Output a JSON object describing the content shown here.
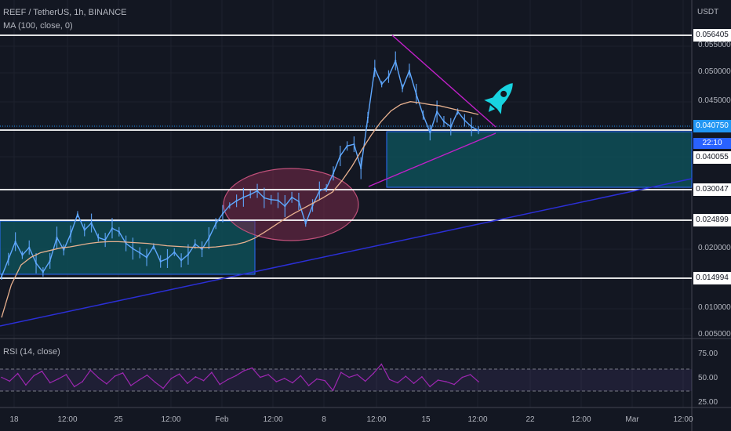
{
  "header": {
    "symbol_line": "REEF / TetherUS, 1h, BINANCE",
    "ma_line": "MA (100, close, 0)",
    "rsi_line": "RSI (14, close)",
    "currency": "USDT"
  },
  "colors": {
    "background": "#131722",
    "candles": "#5fa8ff",
    "ma": "#e8b18f",
    "trendline": "#2b2fd6",
    "triangle": "#c020c8",
    "ellipse_fill": "#7a2a4a",
    "box_fill": "#0e4f57",
    "rsi_line": "#9c27b0",
    "rocket": "#18d3e0"
  },
  "chart_data": {
    "type": "line",
    "title": "REEF / TetherUS, 1h, BINANCE",
    "x_ticks": [
      "18",
      "12:00",
      "25",
      "12:00",
      "Feb",
      "12:00",
      "8",
      "12:00",
      "15",
      "12:00",
      "22",
      "12:00",
      "Mar",
      "12:00"
    ],
    "y_ticks": [
      "0.055000",
      "0.050000",
      "0.045000",
      "0.040000",
      "0.020000",
      "0.010000",
      "0.005000"
    ],
    "ylim": [
      0.005,
      0.06
    ],
    "horizontal_levels": [
      0.056405,
      0.040055,
      0.030047,
      0.024899,
      0.014994
    ],
    "price_tags": [
      "0.056405",
      "0.040055",
      "0.030047",
      "0.024899",
      "0.014994"
    ],
    "current_price": "0.040750",
    "countdown": "22:10",
    "series": [
      {
        "name": "",
        "values": [
          0.0155,
          0.0185,
          0.0215,
          0.0192,
          0.0205,
          0.0178,
          0.0163,
          0.0182,
          0.0222,
          0.0201,
          0.0228,
          0.0262,
          0.0235,
          0.0247,
          0.0222,
          0.0218,
          0.0238,
          0.0232,
          0.0212,
          0.0203,
          0.0196,
          0.0188,
          0.0207,
          0.0181,
          0.0186,
          0.0197,
          0.0183,
          0.0193,
          0.0211,
          0.0202,
          0.0221,
          0.0246,
          0.0263,
          0.0277,
          0.0285,
          0.0291,
          0.0296,
          0.0302,
          0.029,
          0.0287,
          0.0286,
          0.0276,
          0.0291,
          0.0284,
          0.0246,
          0.0277,
          0.0302,
          0.0307,
          0.0332,
          0.0362,
          0.0379,
          0.0382,
          0.0341,
          0.0428,
          0.0512,
          0.0485,
          0.0498,
          0.0525,
          0.0478,
          0.0508,
          0.0468,
          0.0432,
          0.0402,
          0.0438,
          0.0421,
          0.0412,
          0.0438,
          0.0423,
          0.0412,
          0.0406
        ]
      },
      {
        "name": "MA (100, close, 0)",
        "values": [
          0.0085,
          0.0141,
          0.0175,
          0.0188,
          0.0196,
          0.02,
          0.0204,
          0.0206,
          0.0209,
          0.0212,
          0.0214,
          0.0215,
          0.0215,
          0.0214,
          0.0213,
          0.0212,
          0.021,
          0.0208,
          0.0207,
          0.0206,
          0.0205,
          0.0205,
          0.0206,
          0.0208,
          0.021,
          0.0214,
          0.0221,
          0.0231,
          0.0242,
          0.0253,
          0.0263,
          0.0272,
          0.0281,
          0.029,
          0.03,
          0.032,
          0.0344,
          0.0372,
          0.0398,
          0.0421,
          0.0439,
          0.045,
          0.0455,
          0.0453,
          0.045,
          0.0448,
          0.0444,
          0.044,
          0.0437,
          0.0433
        ]
      },
      {
        "name": "RSI (14, close)",
        "values": [
          55,
          48,
          62,
          41,
          58,
          66,
          45,
          52,
          60,
          38,
          47,
          68,
          54,
          43,
          57,
          63,
          40,
          50,
          59,
          46,
          35,
          53,
          61,
          44,
          56,
          49,
          64,
          42,
          51,
          58,
          67,
          72,
          55,
          60,
          47,
          53,
          45,
          58,
          40,
          52,
          49,
          31,
          64,
          55,
          60,
          48,
          62,
          79,
          51,
          45,
          57,
          44,
          56,
          38,
          50,
          47,
          42,
          55,
          60,
          47
        ],
        "ylim": [
          0,
          100
        ],
        "y_ticks": [
          "75.00",
          "50.00",
          "25.00"
        ]
      }
    ]
  }
}
